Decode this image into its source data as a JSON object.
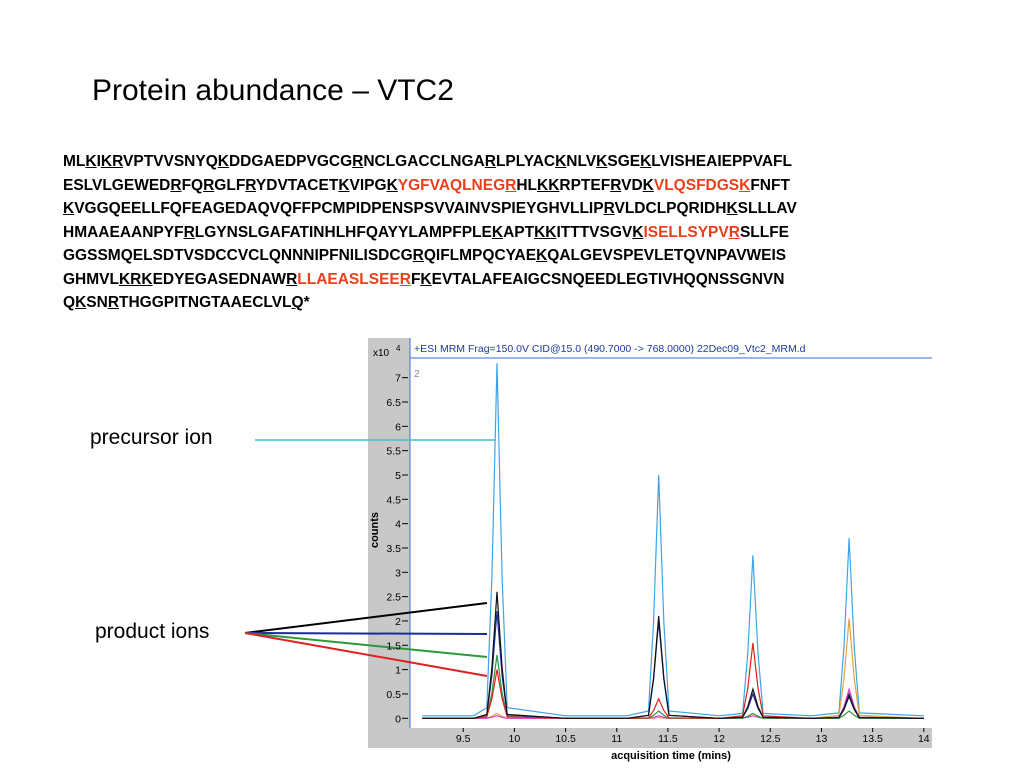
{
  "title": "Protein abundance – VTC2",
  "sequence": {
    "lines": [
      [
        "ML",
        {
          "text": "K",
          "underline": true
        },
        "I",
        {
          "text": "KR",
          "underline": true
        },
        "VPTVVSNYQ",
        {
          "text": "K",
          "underline": true
        },
        "DDGAEDPVGCG",
        {
          "text": "R",
          "underline": true
        },
        "NCLGACCLNGA",
        {
          "text": "R",
          "underline": true
        },
        "LPLYAC",
        {
          "text": "K",
          "underline": true
        },
        "NLV",
        {
          "text": "K",
          "underline": true
        },
        "SGE",
        {
          "text": "K",
          "underline": true
        },
        "LVISHEAIEPPVAFL"
      ],
      [
        "ESLVLGEWED",
        {
          "text": "R",
          "underline": true
        },
        "FQ",
        {
          "text": "R",
          "underline": true
        },
        "GLF",
        {
          "text": "R",
          "underline": true
        },
        "YDVTACET",
        {
          "text": "K",
          "underline": true
        },
        "VIPG",
        {
          "text": "K",
          "underline": true
        },
        {
          "text": "YGFVAQLNEG",
          "color": "#e8401c"
        },
        {
          "text": "R",
          "underline": true,
          "color": "#e8401c"
        },
        "HL",
        {
          "text": "KK",
          "underline": true
        },
        "RPTEF",
        {
          "text": "R",
          "underline": true
        },
        "VD",
        {
          "text": "K",
          "underline": true
        },
        {
          "text": "VLQSFDGS",
          "color": "#e8401c"
        },
        {
          "text": "K",
          "underline": true,
          "color": "#e8401c"
        },
        "FNFT"
      ],
      [
        {
          "text": "K",
          "underline": true
        },
        "VGGQEELLFQFEAGEDAQVQFFPCMPIDPENSPSVVAINVSPIEYGHVLLIP",
        {
          "text": "R",
          "underline": true
        },
        "VLDCLPQRIDH",
        {
          "text": "K",
          "underline": true
        },
        "SLLLAV"
      ],
      [
        "HMAAEAANPYF",
        {
          "text": "R",
          "underline": true
        },
        "LGYNSLGAFATINHLHFQAYYLAMPFPLE",
        {
          "text": "K",
          "underline": true
        },
        "APT",
        {
          "text": "KK",
          "underline": true
        },
        "ITTTVSGV",
        {
          "text": "K",
          "underline": true
        },
        {
          "text": "ISELLSYPV",
          "color": "#e8401c"
        },
        {
          "text": "R",
          "underline": true,
          "color": "#e8401c"
        },
        "SLLFE"
      ],
      [
        "GGSSMQELSDTVSDCCVCLQNNNIPFNILISDCG",
        {
          "text": "R",
          "underline": true
        },
        "QIFLMPQCYAE",
        {
          "text": "K",
          "underline": true
        },
        "QALGEVSPEVLETQVNPAVWEIS"
      ],
      [
        "GHMVL",
        {
          "text": "KRK",
          "underline": true
        },
        "EDYEGASEDNAW",
        {
          "text": "R",
          "underline": true
        },
        {
          "text": "LLAEASLSEE",
          "color": "#e8401c"
        },
        {
          "text": "R",
          "underline": true,
          "color": "#e8401c"
        },
        "F",
        {
          "text": "K",
          "underline": true
        },
        "EVTALAFEAIGCSNQEEDLEGTIVHQQNSSGNVN"
      ],
      [
        "Q",
        {
          "text": "K",
          "underline": true
        },
        "SN",
        {
          "text": "R",
          "underline": true
        },
        "THGGPITNGTAAECLVL",
        {
          "text": "Q",
          "underline": true
        },
        "*"
      ]
    ]
  },
  "annotations": {
    "precursor": "precursor ion",
    "product": "product ions"
  },
  "chart_data": {
    "type": "line",
    "header": "+ESI MRM Frag=150.0V CID@15.0 (490.7000 -> 768.0000) 22Dec09_Vtc2_MRM.d",
    "panel_label": "2",
    "y_multiplier": "x10",
    "y_exponent": "4",
    "ylabel": "counts",
    "xlabel": "acquisition time (mins)",
    "xlim": [
      8.98,
      14.08
    ],
    "ylim": [
      -0.2,
      7.24
    ],
    "xticks": [
      9.5,
      10,
      10.5,
      11,
      11.5,
      12,
      12.5,
      13,
      13.5,
      14
    ],
    "yticks": [
      0,
      0.5,
      1,
      1.5,
      2,
      2.5,
      3,
      3.5,
      4,
      4.5,
      5,
      5.5,
      6,
      6.5,
      7
    ],
    "x": [
      9.1,
      9.6,
      9.73,
      9.78,
      9.83,
      9.88,
      9.93,
      10.5,
      11.1,
      11.31,
      11.36,
      11.41,
      11.46,
      11.51,
      12.0,
      12.23,
      12.28,
      12.33,
      12.38,
      12.43,
      12.9,
      13.17,
      13.22,
      13.27,
      13.32,
      13.37,
      14.0
    ],
    "series": [
      {
        "color": "#3fa3e6",
        "values": [
          0.05,
          0.05,
          0.22,
          2.9,
          7.3,
          2.9,
          0.22,
          0.05,
          0.05,
          0.15,
          2.0,
          5.0,
          2.0,
          0.15,
          0.05,
          0.1,
          1.34,
          3.35,
          1.34,
          0.1,
          0.05,
          0.11,
          1.48,
          3.7,
          1.48,
          0.11,
          0.05
        ]
      },
      {
        "color": "#e8a23a",
        "values": [
          0,
          0,
          0,
          0.04,
          0.1,
          0.04,
          0,
          0,
          0,
          0,
          0,
          0.02,
          0,
          0,
          0,
          0,
          0.04,
          0.1,
          0.04,
          0,
          0,
          0.06,
          0.82,
          2.05,
          0.82,
          0.06,
          0
        ]
      },
      {
        "color": "#e040c0",
        "values": [
          0,
          0,
          0,
          0.02,
          0.05,
          0.02,
          0,
          0,
          0,
          0,
          0.02,
          0.05,
          0.02,
          0,
          0,
          0,
          0.02,
          0.05,
          0.02,
          0,
          0,
          0.02,
          0.24,
          0.6,
          0.24,
          0.02,
          0
        ]
      },
      {
        "color": "#2a9a3a",
        "values": [
          0,
          0,
          0.04,
          0.52,
          1.3,
          0.52,
          0.04,
          0,
          0,
          0,
          0.06,
          0.15,
          0.06,
          0,
          0,
          0,
          0.04,
          0.1,
          0.04,
          0,
          0,
          0,
          0.06,
          0.15,
          0.06,
          0,
          0
        ]
      },
      {
        "color": "#e02020",
        "values": [
          0,
          0,
          0.03,
          0.4,
          1.0,
          0.4,
          0.03,
          0,
          0,
          0.01,
          0.16,
          0.4,
          0.16,
          0.01,
          0,
          0.05,
          0.62,
          1.55,
          0.62,
          0.05,
          0,
          0.02,
          0.2,
          0.5,
          0.2,
          0.02,
          0
        ]
      },
      {
        "color": "#1c2aa0",
        "values": [
          0,
          0,
          0.07,
          0.88,
          2.2,
          0.88,
          0.07,
          0,
          0,
          0.06,
          0.8,
          2.0,
          0.8,
          0.06,
          0,
          0.02,
          0.2,
          0.5,
          0.2,
          0.02,
          0,
          0.02,
          0.2,
          0.5,
          0.2,
          0.02,
          0
        ]
      },
      {
        "color": "#111111",
        "values": [
          0,
          0,
          0.08,
          1.04,
          2.6,
          1.04,
          0.08,
          0,
          0,
          0.06,
          0.84,
          2.1,
          0.84,
          0.06,
          0,
          0.02,
          0.24,
          0.6,
          0.24,
          0.02,
          0,
          0.01,
          0.18,
          0.45,
          0.18,
          0.01,
          0
        ]
      }
    ]
  }
}
